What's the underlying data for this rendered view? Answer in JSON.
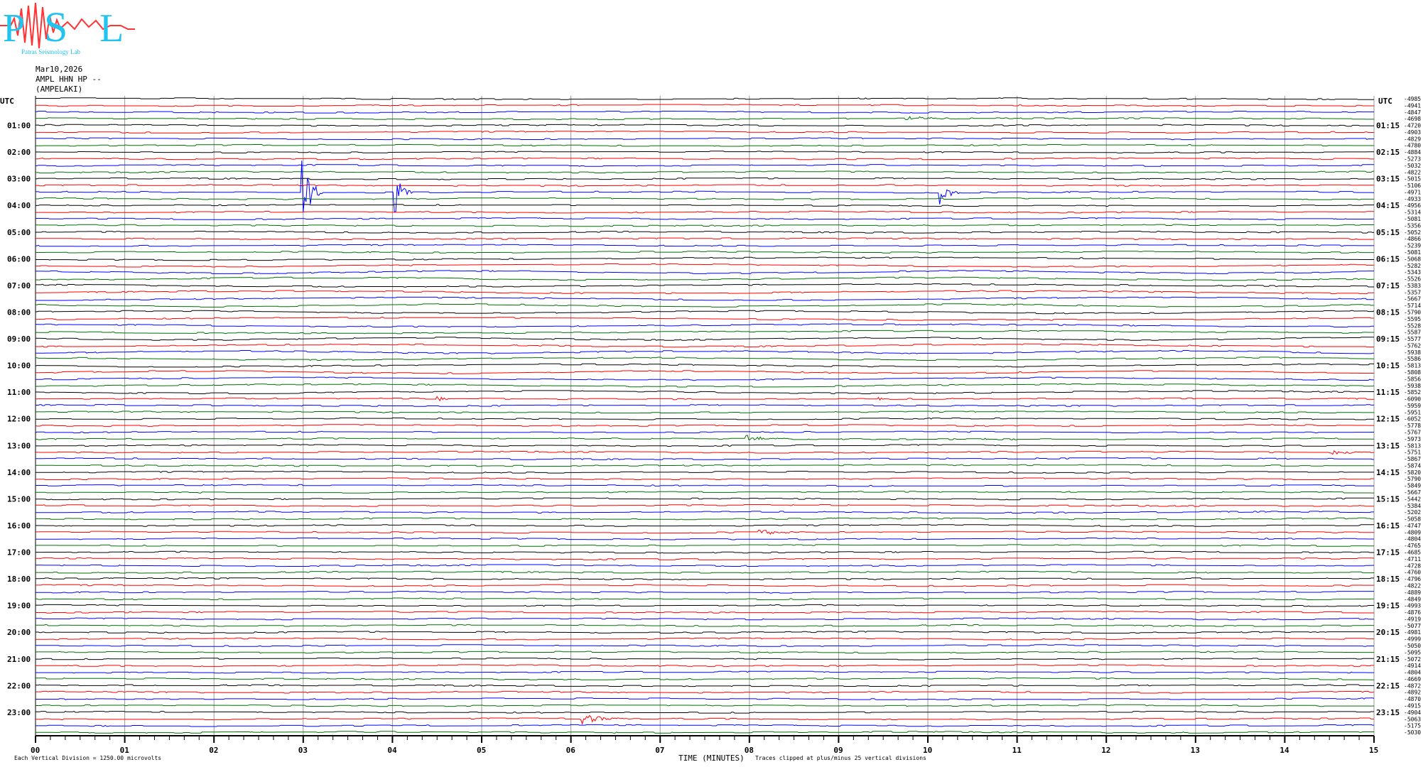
{
  "logo": {
    "text": "Patras Seismology Lab",
    "letters": "PSL",
    "colors": {
      "letters": "#22c4ee",
      "wave": "#ff3333"
    }
  },
  "header": {
    "date": "Mar10,2026",
    "channel": "AMPL HHN HP --",
    "station": "(AMPELAKI)"
  },
  "chart_data": {
    "type": "line",
    "subtype": "helicorder",
    "left_axis_title": "UTC",
    "right_axis_title": "UTC",
    "xlabel": "TIME (MINUTES)",
    "xlim": [
      0,
      15
    ],
    "x_ticks": [
      "00",
      "01",
      "02",
      "03",
      "04",
      "05",
      "06",
      "07",
      "08",
      "09",
      "10",
      "11",
      "12",
      "13",
      "14",
      "15"
    ],
    "grid": "vertical lines each minute",
    "scale_note": "Each Vertical Division = 1250.00 microvolts",
    "clip_note": "Traces clipped at plus/minus 25 vertical divisions",
    "trace_colors": [
      "#000000",
      "#ff0000",
      "#0000ff",
      "#007000"
    ],
    "left_labels": [
      "01:00",
      "02:00",
      "03:00",
      "04:00",
      "05:00",
      "06:00",
      "07:00",
      "08:00",
      "09:00",
      "10:00",
      "11:00",
      "12:00",
      "13:00",
      "14:00",
      "15:00",
      "16:00",
      "17:00",
      "18:00",
      "19:00",
      "20:00",
      "21:00",
      "22:00",
      "23:00"
    ],
    "right_labels": [
      "01:15",
      "02:15",
      "03:15",
      "04:15",
      "05:15",
      "06:15",
      "07:15",
      "08:15",
      "09:15",
      "10:15",
      "11:15",
      "12:15",
      "13:15",
      "14:15",
      "15:15",
      "16:15",
      "17:15",
      "18:15",
      "19:15",
      "20:15",
      "21:15",
      "22:15",
      "23:15"
    ],
    "trace_offsets": [
      -4985,
      -4941,
      -4847,
      -4698,
      -4720,
      -4903,
      -4829,
      -4780,
      -4884,
      -5273,
      -5032,
      -4822,
      -5015,
      -5106,
      -4971,
      -4933,
      -4956,
      -5314,
      -5081,
      -5356,
      -5052,
      -4866,
      -5239,
      -5081,
      -5068,
      -5282,
      -5343,
      -5526,
      -5383,
      -5357,
      -5667,
      -5714,
      -5790,
      -5595,
      -5528,
      -5587,
      -5577,
      -5762,
      -5938,
      -5586,
      -5813,
      -5808,
      -5856,
      -5938,
      -5852,
      -6090,
      -5959,
      -5951,
      -6052,
      -5778,
      -5767,
      -5973,
      -5813,
      -5751,
      -5867,
      -5874,
      -5820,
      -5790,
      -5849,
      -5667,
      -5442,
      -5384,
      -5202,
      -5058,
      -4747,
      -4809,
      -4804,
      -4765,
      -4685,
      -4711,
      -4728,
      -4760,
      -4796,
      -4822,
      -4889,
      -4849,
      -4993,
      -4876,
      -4919,
      -5077,
      -4981,
      -4999,
      -5050,
      -5095,
      -5072,
      -4914,
      -4804,
      -4669,
      -4872,
      -4892,
      -4870,
      -4915,
      -4904,
      -5063,
      -5175,
      -5030
    ],
    "events": [
      {
        "row": 3,
        "minute": 9.75,
        "duration": 0.6,
        "amplitude_div": 0.4
      },
      {
        "row": 14,
        "minute": 2.97,
        "duration": 0.25,
        "amplitude_div": 8
      },
      {
        "row": 14,
        "minute": 4.02,
        "duration": 0.2,
        "amplitude_div": 4
      },
      {
        "row": 14,
        "minute": 10.12,
        "duration": 0.25,
        "amplitude_div": 2.5
      },
      {
        "row": 45,
        "minute": 4.5,
        "duration": 0.15,
        "amplitude_div": 0.6
      },
      {
        "row": 45,
        "minute": 9.42,
        "duration": 0.12,
        "amplitude_div": 0.7
      },
      {
        "row": 51,
        "minute": 7.95,
        "duration": 0.5,
        "amplitude_div": 0.6
      },
      {
        "row": 51,
        "minute": 10.6,
        "duration": 0.12,
        "amplitude_div": 0.6
      },
      {
        "row": 53,
        "minute": 14.5,
        "duration": 0.5,
        "amplitude_div": 0.4
      },
      {
        "row": 65,
        "minute": 8.1,
        "duration": 0.5,
        "amplitude_div": 0.5
      },
      {
        "row": 93,
        "minute": 6.1,
        "duration": 0.6,
        "amplitude_div": 0.9
      }
    ]
  }
}
